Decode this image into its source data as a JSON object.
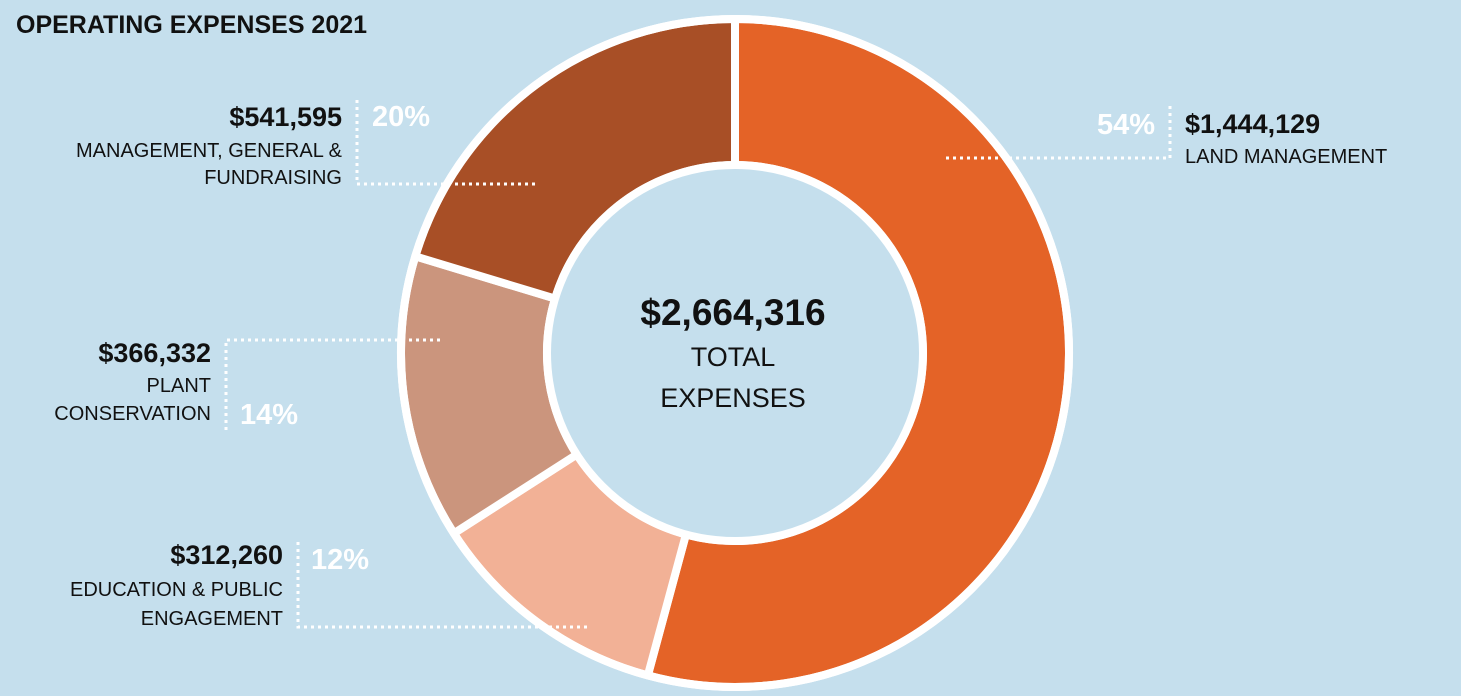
{
  "title": "OPERATING EXPENSES 2021",
  "center": {
    "total": "$2,664,316",
    "label_lines": [
      "TOTAL",
      "EXPENSES"
    ]
  },
  "chart_data": {
    "type": "pie",
    "title": "OPERATING EXPENSES 2021",
    "donut": true,
    "total": 2664316,
    "slices": [
      {
        "key": "land",
        "label": "LAND MANAGEMENT",
        "value": 1444129,
        "display_value": "$1,444,129",
        "percent": "54%",
        "color": "#e46327"
      },
      {
        "key": "edu",
        "label": "EDUCATION & PUBLIC ENGAGEMENT",
        "value": 312260,
        "display_value": "$312,260",
        "percent": "12%",
        "color": "#f2b196"
      },
      {
        "key": "plant",
        "label": "PLANT CONSERVATION",
        "value": 366332,
        "display_value": "$366,332",
        "percent": "14%",
        "color": "#cb957d"
      },
      {
        "key": "mgmt",
        "label": "MANAGEMENT, GENERAL & FUNDRAISING",
        "value": 541595,
        "display_value": "$541,595",
        "percent": "20%",
        "color": "#a84f26"
      }
    ]
  },
  "labels": {
    "land": {
      "amount": "$1,444,129",
      "lines": [
        "LAND MANAGEMENT"
      ],
      "percent": "54%"
    },
    "edu": {
      "amount": "$312,260",
      "lines": [
        "EDUCATION & PUBLIC",
        "ENGAGEMENT"
      ],
      "percent": "12%"
    },
    "plant": {
      "amount": "$366,332",
      "lines": [
        "PLANT",
        "CONSERVATION"
      ],
      "percent": "14%"
    },
    "mgmt": {
      "amount": "$541,595",
      "lines": [
        "MANAGEMENT, GENERAL &",
        "FUNDRAISING"
      ],
      "percent": "20%"
    }
  },
  "colors": {
    "background": "#c5dfed",
    "separator": "#ffffff"
  }
}
